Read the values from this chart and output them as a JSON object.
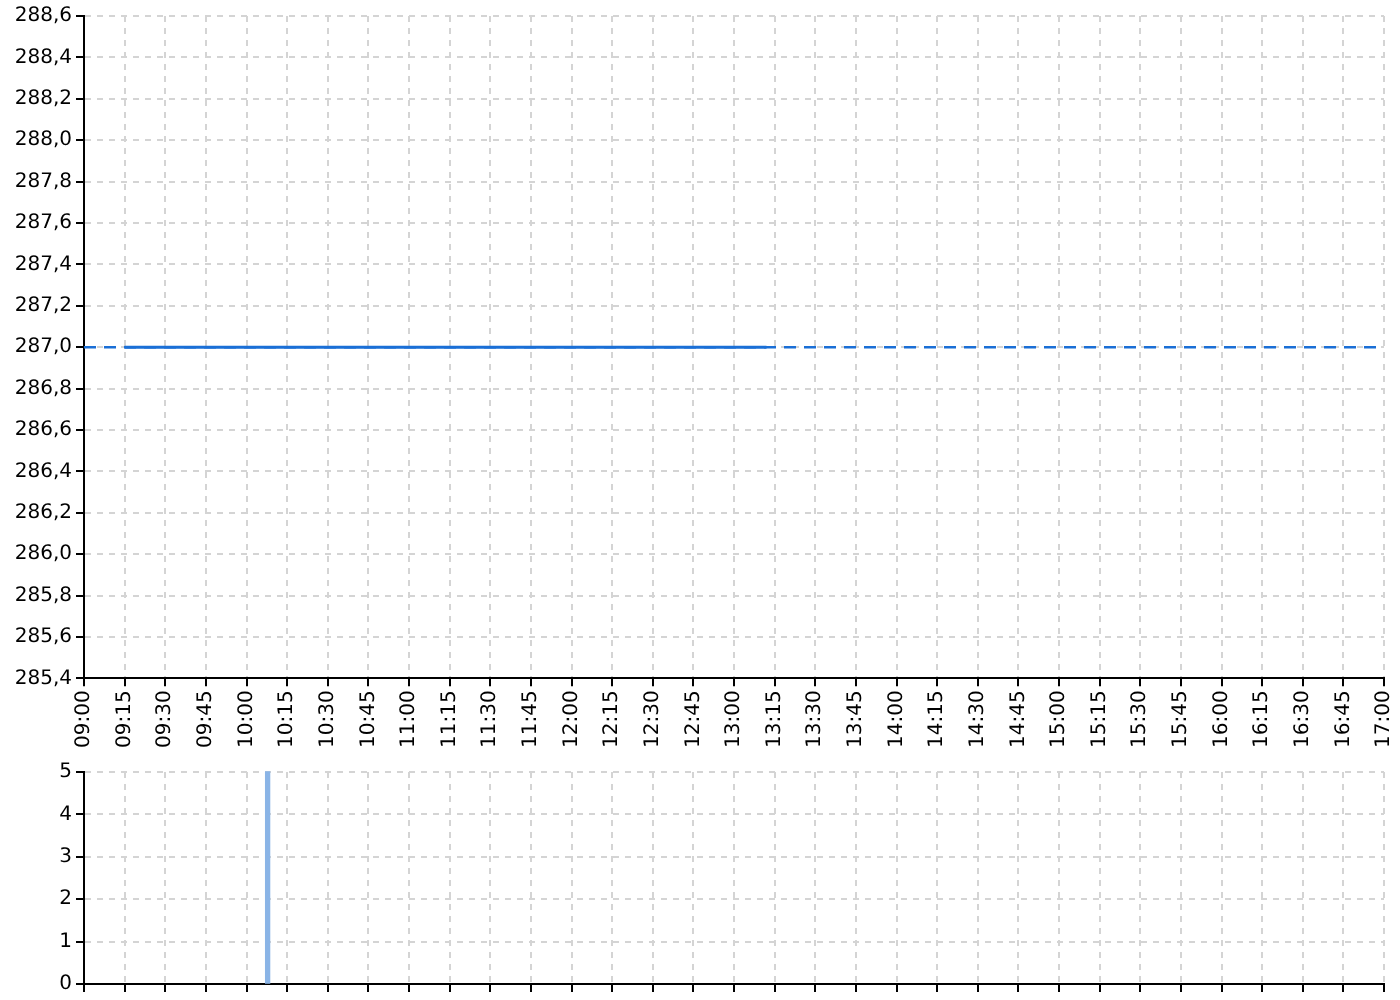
{
  "chart_data": [
    {
      "type": "line",
      "xlim": [
        9,
        17
      ],
      "xticks": [
        {
          "value": 9,
          "label": "09:00"
        },
        {
          "value": 9.25,
          "label": "09:15"
        },
        {
          "value": 9.5,
          "label": "09:30"
        },
        {
          "value": 9.75,
          "label": "09:45"
        },
        {
          "value": 10,
          "label": "10:00"
        },
        {
          "value": 10.25,
          "label": "10:15"
        },
        {
          "value": 10.5,
          "label": "10:30"
        },
        {
          "value": 10.75,
          "label": "10:45"
        },
        {
          "value": 11,
          "label": "11:00"
        },
        {
          "value": 11.25,
          "label": "11:15"
        },
        {
          "value": 11.5,
          "label": "11:30"
        },
        {
          "value": 11.75,
          "label": "11:45"
        },
        {
          "value": 12,
          "label": "12:00"
        },
        {
          "value": 12.25,
          "label": "12:15"
        },
        {
          "value": 12.5,
          "label": "12:30"
        },
        {
          "value": 12.75,
          "label": "12:45"
        },
        {
          "value": 13,
          "label": "13:00"
        },
        {
          "value": 13.25,
          "label": "13:15"
        },
        {
          "value": 13.5,
          "label": "13:30"
        },
        {
          "value": 13.75,
          "label": "13:45"
        },
        {
          "value": 14,
          "label": "14:00"
        },
        {
          "value": 14.25,
          "label": "14:15"
        },
        {
          "value": 14.5,
          "label": "14:30"
        },
        {
          "value": 14.75,
          "label": "14:45"
        },
        {
          "value": 15,
          "label": "15:00"
        },
        {
          "value": 15.25,
          "label": "15:15"
        },
        {
          "value": 15.5,
          "label": "15:30"
        },
        {
          "value": 15.75,
          "label": "15:45"
        },
        {
          "value": 16,
          "label": "16:00"
        },
        {
          "value": 16.25,
          "label": "16:15"
        },
        {
          "value": 16.5,
          "label": "16:30"
        },
        {
          "value": 16.75,
          "label": "16:45"
        },
        {
          "value": 17,
          "label": "17:00"
        }
      ],
      "ylim": [
        285.4,
        288.6
      ],
      "yticks": [
        {
          "value": 285.4,
          "label": "285,4"
        },
        {
          "value": 285.6,
          "label": "285,6"
        },
        {
          "value": 285.8,
          "label": "285,8"
        },
        {
          "value": 286,
          "label": "286,0"
        },
        {
          "value": 286.2,
          "label": "286,2"
        },
        {
          "value": 286.4,
          "label": "286,4"
        },
        {
          "value": 286.6,
          "label": "286,6"
        },
        {
          "value": 286.8,
          "label": "286,8"
        },
        {
          "value": 287,
          "label": "287,0"
        },
        {
          "value": 287.2,
          "label": "287,2"
        },
        {
          "value": 287.4,
          "label": "287,4"
        },
        {
          "value": 287.6,
          "label": "287,6"
        },
        {
          "value": 287.8,
          "label": "287,8"
        },
        {
          "value": 288,
          "label": "288,0"
        },
        {
          "value": 288.2,
          "label": "288,2"
        },
        {
          "value": 288.4,
          "label": "288,4"
        },
        {
          "value": 288.6,
          "label": "288,6"
        }
      ],
      "series": [
        {
          "color": "#1a6fd6",
          "x": [
            9.25,
            13.2
          ],
          "values": [
            287,
            287
          ]
        }
      ],
      "ref_lines": [
        {
          "axis": "y",
          "value": 287,
          "color": "#1a6fd6",
          "line_style": "dashed"
        }
      ],
      "grid": true,
      "marker": "none",
      "legend": false
    },
    {
      "type": "bar",
      "xlim": [
        9,
        17
      ],
      "xticks": [
        9,
        9.25,
        9.5,
        9.75,
        10,
        10.25,
        10.5,
        10.75,
        11,
        11.25,
        11.5,
        11.75,
        12,
        12.25,
        12.5,
        12.75,
        13,
        13.25,
        13.5,
        13.75,
        14,
        14.25,
        14.5,
        14.75,
        15,
        15.25,
        15.5,
        15.75,
        16,
        16.25,
        16.5,
        16.75,
        17
      ],
      "ylim": [
        0,
        5
      ],
      "yticks": [
        0,
        1,
        2,
        3,
        4,
        5
      ],
      "x": [
        10.13
      ],
      "values": [
        5
      ],
      "color": "#8ab4e6",
      "grid": true,
      "tick_labels": "y",
      "legend": false
    }
  ]
}
